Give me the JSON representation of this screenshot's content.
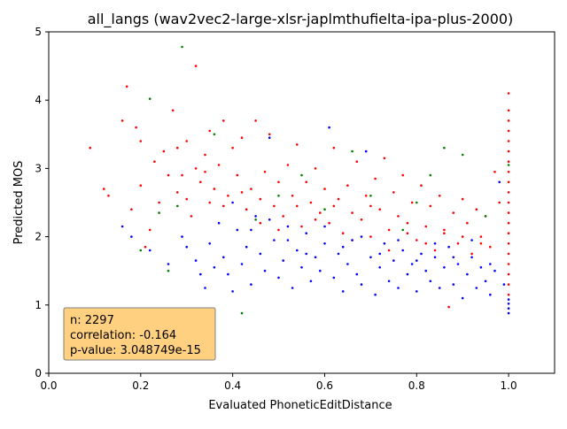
{
  "chart_data": {
    "type": "scatter",
    "title": "all_langs (wav2vec2-large-xlsr-japlmthufielta-ipa-plus-2000)",
    "xlabel": "Evaluated PhoneticEditDistance",
    "ylabel": "Predicted MOS",
    "xlim": [
      0.0,
      1.1
    ],
    "ylim": [
      0,
      5
    ],
    "xticks": [
      "0.0",
      "0.2",
      "0.4",
      "0.6",
      "0.8",
      "1.0"
    ],
    "xtick_values": [
      0.0,
      0.2,
      0.4,
      0.6,
      0.8,
      1.0
    ],
    "yticks": [
      "0",
      "1",
      "2",
      "3",
      "4",
      "5"
    ],
    "ytick_values": [
      0,
      1,
      2,
      3,
      4,
      5
    ],
    "grid": false,
    "series": [
      {
        "color": "#ff0000",
        "points": [
          [
            0.09,
            3.3
          ],
          [
            0.12,
            2.7
          ],
          [
            0.13,
            2.6
          ],
          [
            0.16,
            3.7
          ],
          [
            0.17,
            4.2
          ],
          [
            0.18,
            2.4
          ],
          [
            0.19,
            3.6
          ],
          [
            0.2,
            3.4
          ],
          [
            0.2,
            2.75
          ],
          [
            0.21,
            1.85
          ],
          [
            0.22,
            2.1
          ],
          [
            0.23,
            3.1
          ],
          [
            0.24,
            2.5
          ],
          [
            0.25,
            3.25
          ],
          [
            0.26,
            2.9
          ],
          [
            0.27,
            3.85
          ],
          [
            0.28,
            3.3
          ],
          [
            0.28,
            2.65
          ],
          [
            0.29,
            2.9
          ],
          [
            0.3,
            3.4
          ],
          [
            0.31,
            2.3
          ],
          [
            0.32,
            3.0
          ],
          [
            0.32,
            4.5
          ],
          [
            0.33,
            2.8
          ],
          [
            0.34,
            3.2
          ],
          [
            0.35,
            2.5
          ],
          [
            0.35,
            3.55
          ],
          [
            0.36,
            2.7
          ],
          [
            0.37,
            3.05
          ],
          [
            0.38,
            3.7
          ],
          [
            0.39,
            2.6
          ],
          [
            0.4,
            3.3
          ],
          [
            0.41,
            2.9
          ],
          [
            0.42,
            3.45
          ],
          [
            0.43,
            2.4
          ],
          [
            0.44,
            2.7
          ],
          [
            0.45,
            3.7
          ],
          [
            0.46,
            2.2
          ],
          [
            0.47,
            2.95
          ],
          [
            0.48,
            3.5
          ],
          [
            0.49,
            2.45
          ],
          [
            0.5,
            2.8
          ],
          [
            0.51,
            2.3
          ],
          [
            0.52,
            3.05
          ],
          [
            0.53,
            2.6
          ],
          [
            0.54,
            3.35
          ],
          [
            0.55,
            2.15
          ],
          [
            0.56,
            2.8
          ],
          [
            0.57,
            2.5
          ],
          [
            0.58,
            3.0
          ],
          [
            0.59,
            2.35
          ],
          [
            0.6,
            2.7
          ],
          [
            0.61,
            2.2
          ],
          [
            0.62,
            3.3
          ],
          [
            0.63,
            2.55
          ],
          [
            0.64,
            2.05
          ],
          [
            0.65,
            2.75
          ],
          [
            0.66,
            2.35
          ],
          [
            0.67,
            3.1
          ],
          [
            0.68,
            2.25
          ],
          [
            0.69,
            2.6
          ],
          [
            0.7,
            2.0
          ],
          [
            0.71,
            2.85
          ],
          [
            0.72,
            2.4
          ],
          [
            0.73,
            3.15
          ],
          [
            0.74,
            2.1
          ],
          [
            0.75,
            2.65
          ],
          [
            0.76,
            2.3
          ],
          [
            0.77,
            2.9
          ],
          [
            0.78,
            2.2
          ],
          [
            0.79,
            2.5
          ],
          [
            0.8,
            1.95
          ],
          [
            0.81,
            2.75
          ],
          [
            0.82,
            2.15
          ],
          [
            0.83,
            2.45
          ],
          [
            0.84,
            1.8
          ],
          [
            0.85,
            2.6
          ],
          [
            0.86,
            2.05
          ],
          [
            0.87,
            0.97
          ],
          [
            0.88,
            2.35
          ],
          [
            0.89,
            1.9
          ],
          [
            0.9,
            2.55
          ],
          [
            0.91,
            2.2
          ],
          [
            0.92,
            1.75
          ],
          [
            0.93,
            2.4
          ],
          [
            0.94,
            2.0
          ],
          [
            0.95,
            2.3
          ],
          [
            0.96,
            1.85
          ],
          [
            0.97,
            2.95
          ],
          [
            0.98,
            2.5
          ],
          [
            0.3,
            2.55
          ],
          [
            0.34,
            2.95
          ],
          [
            0.38,
            2.45
          ],
          [
            0.42,
            2.65
          ],
          [
            0.46,
            2.55
          ],
          [
            0.5,
            2.1
          ],
          [
            0.54,
            2.45
          ],
          [
            0.58,
            2.25
          ],
          [
            0.62,
            2.45
          ],
          [
            0.66,
            1.95
          ],
          [
            0.7,
            2.45
          ],
          [
            0.74,
            1.8
          ],
          [
            0.78,
            2.05
          ],
          [
            0.82,
            1.9
          ],
          [
            0.86,
            2.1
          ],
          [
            0.9,
            2.0
          ],
          [
            0.94,
            1.9
          ],
          [
            1.0,
            4.1
          ],
          [
            1.0,
            3.85
          ],
          [
            1.0,
            3.7
          ],
          [
            1.0,
            3.55
          ],
          [
            1.0,
            3.4
          ],
          [
            1.0,
            3.25
          ],
          [
            1.0,
            3.1
          ],
          [
            1.0,
            2.95
          ],
          [
            1.0,
            2.8
          ],
          [
            1.0,
            2.65
          ],
          [
            1.0,
            2.5
          ],
          [
            1.0,
            2.35
          ],
          [
            1.0,
            2.2
          ],
          [
            1.0,
            2.05
          ],
          [
            1.0,
            1.9
          ],
          [
            1.0,
            1.75
          ],
          [
            1.0,
            1.6
          ],
          [
            1.0,
            1.45
          ],
          [
            1.0,
            1.3
          ],
          [
            1.0,
            1.15
          ]
        ]
      },
      {
        "color": "#0000ff",
        "points": [
          [
            0.16,
            2.15
          ],
          [
            0.18,
            2.0
          ],
          [
            0.22,
            1.8
          ],
          [
            0.26,
            1.6
          ],
          [
            0.29,
            2.0
          ],
          [
            0.3,
            1.85
          ],
          [
            0.32,
            1.65
          ],
          [
            0.33,
            1.45
          ],
          [
            0.34,
            1.25
          ],
          [
            0.35,
            1.9
          ],
          [
            0.36,
            1.55
          ],
          [
            0.37,
            2.2
          ],
          [
            0.38,
            1.7
          ],
          [
            0.39,
            1.45
          ],
          [
            0.4,
            1.2
          ],
          [
            0.41,
            2.1
          ],
          [
            0.42,
            1.6
          ],
          [
            0.43,
            1.85
          ],
          [
            0.44,
            1.3
          ],
          [
            0.45,
            2.3
          ],
          [
            0.46,
            1.75
          ],
          [
            0.47,
            1.5
          ],
          [
            0.48,
            3.45
          ],
          [
            0.49,
            1.95
          ],
          [
            0.5,
            1.4
          ],
          [
            0.51,
            1.65
          ],
          [
            0.52,
            2.15
          ],
          [
            0.53,
            1.25
          ],
          [
            0.54,
            1.8
          ],
          [
            0.55,
            1.55
          ],
          [
            0.56,
            2.05
          ],
          [
            0.57,
            1.35
          ],
          [
            0.58,
            1.7
          ],
          [
            0.59,
            1.5
          ],
          [
            0.6,
            1.9
          ],
          [
            0.61,
            3.6
          ],
          [
            0.62,
            1.4
          ],
          [
            0.63,
            1.75
          ],
          [
            0.64,
            1.2
          ],
          [
            0.65,
            1.6
          ],
          [
            0.66,
            1.95
          ],
          [
            0.67,
            1.45
          ],
          [
            0.68,
            1.3
          ],
          [
            0.69,
            3.25
          ],
          [
            0.7,
            1.7
          ],
          [
            0.71,
            1.15
          ],
          [
            0.72,
            1.55
          ],
          [
            0.73,
            1.9
          ],
          [
            0.74,
            1.35
          ],
          [
            0.75,
            1.65
          ],
          [
            0.76,
            1.25
          ],
          [
            0.77,
            1.8
          ],
          [
            0.78,
            1.45
          ],
          [
            0.79,
            1.6
          ],
          [
            0.8,
            1.2
          ],
          [
            0.81,
            1.75
          ],
          [
            0.82,
            1.5
          ],
          [
            0.83,
            1.35
          ],
          [
            0.84,
            1.7
          ],
          [
            0.85,
            1.25
          ],
          [
            0.86,
            1.55
          ],
          [
            0.87,
            1.85
          ],
          [
            0.88,
            1.3
          ],
          [
            0.89,
            1.6
          ],
          [
            0.9,
            1.1
          ],
          [
            0.91,
            1.45
          ],
          [
            0.92,
            1.7
          ],
          [
            0.93,
            1.25
          ],
          [
            0.94,
            1.55
          ],
          [
            0.95,
            1.35
          ],
          [
            0.96,
            1.15
          ],
          [
            0.97,
            1.5
          ],
          [
            0.98,
            2.8
          ],
          [
            0.99,
            1.3
          ],
          [
            0.4,
            2.5
          ],
          [
            0.44,
            2.1
          ],
          [
            0.48,
            2.25
          ],
          [
            0.52,
            1.95
          ],
          [
            0.56,
            1.75
          ],
          [
            0.6,
            2.15
          ],
          [
            0.64,
            1.85
          ],
          [
            0.68,
            2.0
          ],
          [
            0.72,
            1.75
          ],
          [
            0.76,
            1.95
          ],
          [
            0.8,
            1.65
          ],
          [
            0.84,
            1.9
          ],
          [
            0.88,
            1.7
          ],
          [
            0.92,
            1.95
          ],
          [
            0.96,
            1.6
          ],
          [
            1.0,
            0.88
          ],
          [
            1.0,
            0.95
          ],
          [
            1.0,
            1.02
          ],
          [
            1.0,
            1.08
          ]
        ]
      },
      {
        "color": "#008000",
        "points": [
          [
            0.2,
            1.8
          ],
          [
            0.22,
            4.02
          ],
          [
            0.24,
            2.35
          ],
          [
            0.26,
            1.5
          ],
          [
            0.28,
            2.45
          ],
          [
            0.29,
            4.78
          ],
          [
            0.36,
            3.5
          ],
          [
            0.42,
            0.88
          ],
          [
            0.45,
            2.25
          ],
          [
            0.5,
            2.6
          ],
          [
            0.55,
            2.9
          ],
          [
            0.6,
            2.4
          ],
          [
            0.66,
            3.25
          ],
          [
            0.7,
            2.6
          ],
          [
            0.77,
            2.1
          ],
          [
            0.8,
            2.5
          ],
          [
            0.83,
            2.9
          ],
          [
            0.86,
            3.3
          ],
          [
            0.9,
            3.2
          ],
          [
            0.95,
            2.3
          ],
          [
            1.0,
            3.05
          ]
        ]
      }
    ],
    "stats": {
      "n": "n: 2297",
      "correlation": "correlation: -0.164",
      "p_value": "p-value: 3.048749e-15"
    }
  }
}
